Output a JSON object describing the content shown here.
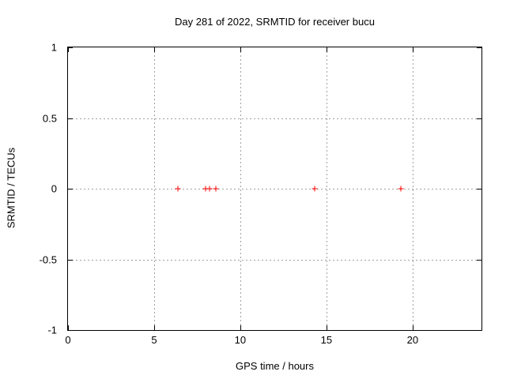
{
  "chart_data": {
    "type": "scatter",
    "title": "Day 281 of 2022, SRMTID for receiver bucu",
    "xlabel": "GPS time / hours",
    "ylabel": "SRMTID / TECUs",
    "xlim": [
      0,
      24
    ],
    "ylim": [
      -1,
      1
    ],
    "x_ticks": [
      0,
      5,
      10,
      15,
      20
    ],
    "y_ticks": [
      -1,
      -0.5,
      0,
      0.5,
      1
    ],
    "grid": true,
    "legend_position": "none",
    "series": [
      {
        "name": "SRMTID",
        "marker": "plus",
        "color": "#ff0000",
        "points": [
          {
            "x": 6.4,
            "y": 0
          },
          {
            "x": 8.0,
            "y": 0
          },
          {
            "x": 8.2,
            "y": 0
          },
          {
            "x": 8.6,
            "y": 0
          },
          {
            "x": 14.3,
            "y": 0
          },
          {
            "x": 19.3,
            "y": 0
          }
        ]
      }
    ],
    "colors": {
      "background": "#ffffff",
      "axis": "#000000",
      "grid": "#a0a0a0",
      "text": "#000000",
      "marker": "#ff0000"
    }
  }
}
